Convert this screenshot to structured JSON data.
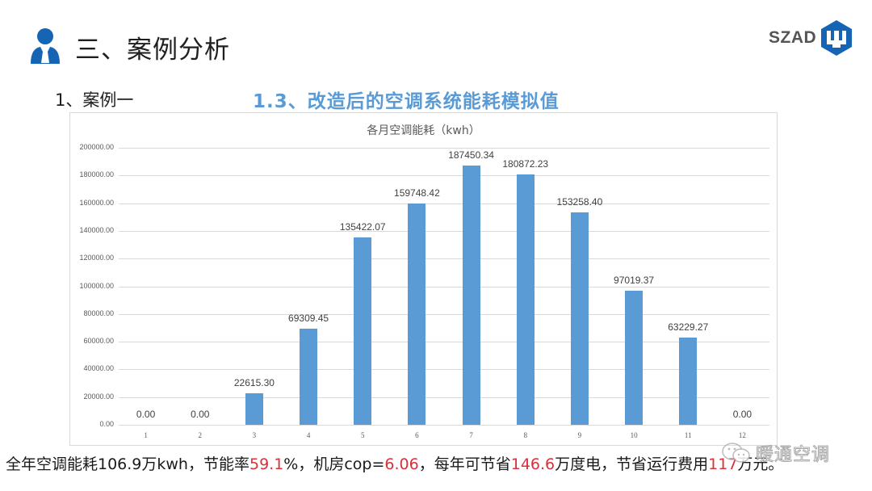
{
  "header": {
    "icon": "person-icon",
    "title": "三、案例分析"
  },
  "logo": {
    "text": "SZAD",
    "icon": "szad-hexagon-logo-icon",
    "color": "#1565b4"
  },
  "case_label": "1、案例一",
  "subtitle": "1.3、改造后的空调系统能耗模拟值",
  "chart_data": {
    "type": "bar",
    "title": "各月空调能耗（kwh）",
    "xlabel": "",
    "ylabel": "",
    "categories": [
      "1",
      "2",
      "3",
      "4",
      "5",
      "6",
      "7",
      "8",
      "9",
      "10",
      "11",
      "12"
    ],
    "values": [
      0.0,
      0.0,
      22615.3,
      69309.45,
      135422.07,
      159748.42,
      187450.34,
      180872.23,
      153258.4,
      97019.37,
      63229.27,
      0.0
    ],
    "value_labels": [
      "0.00",
      "0.00",
      "22615.30",
      "69309.45",
      "135422.07",
      "159748.42",
      "187450.34",
      "180872.23",
      "153258.40",
      "97019.37",
      "63229.27",
      "0.00"
    ],
    "ylim": [
      0,
      200000
    ],
    "yticks": [
      "0.00",
      "20000.00",
      "40000.00",
      "60000.00",
      "80000.00",
      "100000.00",
      "120000.00",
      "140000.00",
      "160000.00",
      "180000.00",
      "200000.00"
    ],
    "grid": true,
    "legend": "none",
    "bar_color": "#5b9bd5"
  },
  "caption": {
    "parts": [
      {
        "text": "全年空调能耗106.9万kwh，节能率",
        "highlight": false
      },
      {
        "text": "59.1",
        "highlight": true
      },
      {
        "text": "%，机房cop=",
        "highlight": false
      },
      {
        "text": "6.06",
        "highlight": true
      },
      {
        "text": "，每年可节省",
        "highlight": false
      },
      {
        "text": "146.6",
        "highlight": true
      },
      {
        "text": "万度电，节省运行费用",
        "highlight": false
      },
      {
        "text": "117",
        "highlight": true
      },
      {
        "text": "万元。",
        "highlight": false
      }
    ],
    "highlight_color": "#d9303a"
  },
  "watermark": {
    "icon": "wechat-icon",
    "text": "暖通空调"
  }
}
